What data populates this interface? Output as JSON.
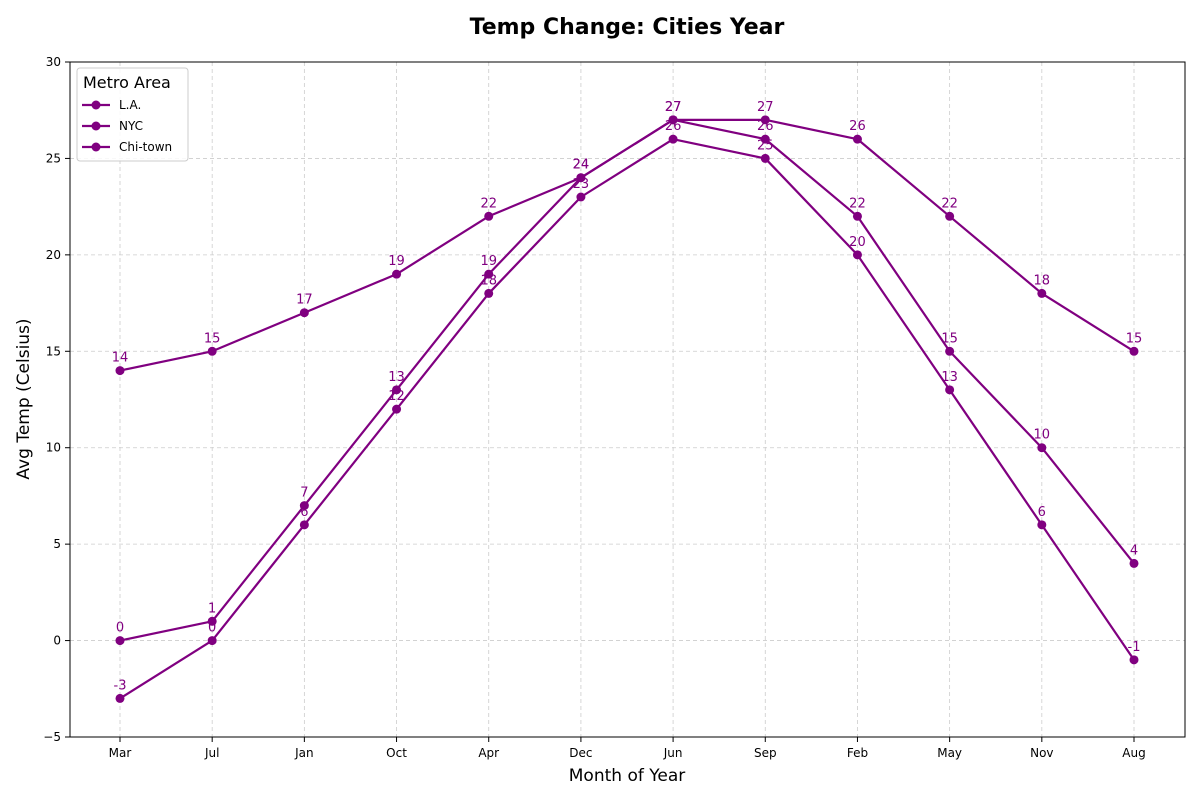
{
  "chart_data": {
    "type": "line",
    "title": "Temp Change: Cities Year",
    "xlabel": "Month of Year",
    "ylabel": "Avg Temp (Celsius)",
    "categories": [
      "Mar",
      "Jul",
      "Jan",
      "Oct",
      "Apr",
      "Dec",
      "Jun",
      "Sep",
      "Feb",
      "May",
      "Nov",
      "Aug"
    ],
    "ylim": [
      -5,
      30
    ],
    "yticks": [
      -5,
      0,
      5,
      10,
      15,
      20,
      25,
      30
    ],
    "ytick_labels": [
      "−5",
      "0",
      "5",
      "10",
      "15",
      "20",
      "25",
      "30"
    ],
    "grid": true,
    "legend": {
      "title": "Metro Area",
      "placement": "top-left"
    },
    "series": [
      {
        "name": "L.A.",
        "color": "#800080",
        "values": [
          14,
          15,
          17,
          19,
          22,
          24,
          27,
          27,
          26,
          22,
          18,
          15
        ]
      },
      {
        "name": "NYC",
        "color": "#800080",
        "values": [
          0,
          1,
          7,
          13,
          19,
          24,
          27,
          26,
          22,
          15,
          10,
          4
        ]
      },
      {
        "name": "Chi-town",
        "color": "#800080",
        "values": [
          -3,
          0,
          6,
          12,
          18,
          23,
          26,
          25,
          20,
          13,
          6,
          -1
        ]
      }
    ]
  }
}
